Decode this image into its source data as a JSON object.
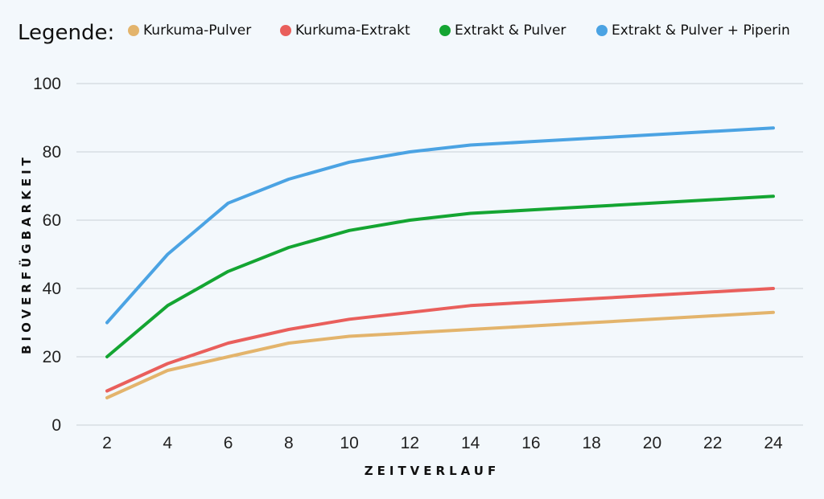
{
  "chart_data": {
    "type": "line",
    "legend_title": "Legende:",
    "legend_position": "top",
    "xlabel": "ZEITVERLAUF",
    "ylabel": "BIOVERFÜGBARKEIT",
    "x": [
      2,
      4,
      6,
      8,
      10,
      12,
      14,
      16,
      18,
      20,
      22,
      24
    ],
    "xticks": [
      "2",
      "4",
      "6",
      "8",
      "10",
      "12",
      "14",
      "16",
      "18",
      "20",
      "22",
      "24"
    ],
    "yticks": [
      "0",
      "20",
      "40",
      "60",
      "80",
      "100"
    ],
    "ylim": [
      0,
      100
    ],
    "grid": true,
    "series": [
      {
        "name": "Kurkuma-Pulver",
        "color": "#e3b46c",
        "values": [
          8,
          16,
          20,
          24,
          26,
          27,
          28,
          29,
          30,
          31,
          32,
          33
        ]
      },
      {
        "name": "Kurkuma-Extrakt",
        "color": "#e95f5c",
        "values": [
          10,
          18,
          24,
          28,
          31,
          33,
          35,
          36,
          37,
          38,
          39,
          40
        ]
      },
      {
        "name": "Extrakt & Pulver",
        "color": "#14a532",
        "values": [
          20,
          35,
          45,
          52,
          57,
          60,
          62,
          63,
          64,
          65,
          66,
          67
        ]
      },
      {
        "name": "Extrakt & Pulver + Piperin",
        "color": "#4ba3e3",
        "values": [
          30,
          50,
          65,
          72,
          77,
          80,
          82,
          83,
          84,
          85,
          86,
          87
        ]
      }
    ]
  }
}
